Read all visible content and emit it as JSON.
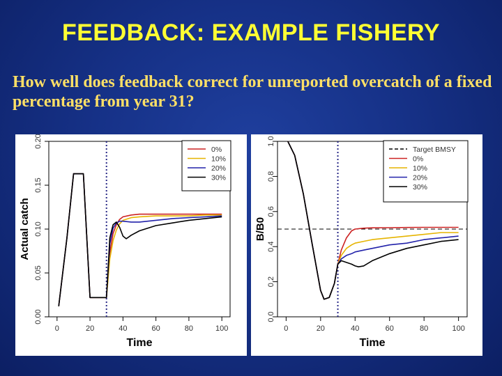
{
  "slide": {
    "title": "FEEDBACK: EXAMPLE FISHERY",
    "question": "How well does feedback correct for unreported overcatch of a fixed percentage from year 31?"
  },
  "chart_data": [
    {
      "type": "line",
      "xlabel": "Time",
      "ylabel": "Actual catch",
      "xlim": [
        -5,
        105
      ],
      "ylim": [
        0,
        0.2
      ],
      "xticks": [
        0,
        20,
        40,
        60,
        80,
        100
      ],
      "yticks": [
        0.0,
        0.05,
        0.1,
        0.15,
        0.2
      ],
      "ytick_labels": [
        "0.00",
        "0.05",
        "0.10",
        "0.15",
        "0.20"
      ],
      "vline": 30,
      "legend_position": "top-right",
      "series": [
        {
          "name": "0%",
          "color": "#cc2222",
          "x": [
            1,
            6,
            10,
            15,
            16,
            20,
            25,
            29,
            30,
            32,
            34,
            36,
            38,
            40,
            45,
            50,
            60,
            70,
            80,
            90,
            100
          ],
          "y": [
            0.012,
            0.09,
            0.163,
            0.163,
            0.163,
            0.022,
            0.022,
            0.022,
            0.022,
            0.073,
            0.095,
            0.105,
            0.111,
            0.114,
            0.116,
            0.117,
            0.117,
            0.117,
            0.117,
            0.117,
            0.117
          ]
        },
        {
          "name": "10%",
          "color": "#e6b400",
          "x": [
            1,
            6,
            10,
            15,
            16,
            20,
            25,
            29,
            30,
            32,
            34,
            36,
            38,
            40,
            45,
            50,
            60,
            70,
            80,
            90,
            100
          ],
          "y": [
            0.012,
            0.09,
            0.163,
            0.163,
            0.163,
            0.022,
            0.022,
            0.022,
            0.022,
            0.066,
            0.087,
            0.099,
            0.106,
            0.11,
            0.113,
            0.114,
            0.115,
            0.115,
            0.115,
            0.116,
            0.116
          ]
        },
        {
          "name": "20%",
          "color": "#2222aa",
          "x": [
            1,
            6,
            10,
            15,
            16,
            20,
            25,
            29,
            30,
            32,
            34,
            36,
            38,
            40,
            45,
            50,
            60,
            70,
            80,
            90,
            100
          ],
          "y": [
            0.012,
            0.09,
            0.163,
            0.163,
            0.163,
            0.022,
            0.022,
            0.022,
            0.022,
            0.083,
            0.101,
            0.107,
            0.109,
            0.109,
            0.108,
            0.108,
            0.11,
            0.112,
            0.113,
            0.114,
            0.115
          ]
        },
        {
          "name": "30%",
          "color": "#000000",
          "x": [
            1,
            6,
            10,
            15,
            16,
            20,
            25,
            29,
            30,
            32,
            34,
            36,
            38,
            40,
            42,
            45,
            50,
            55,
            60,
            70,
            80,
            90,
            100
          ],
          "y": [
            0.012,
            0.09,
            0.163,
            0.163,
            0.163,
            0.022,
            0.022,
            0.022,
            0.022,
            0.09,
            0.105,
            0.108,
            0.102,
            0.092,
            0.089,
            0.093,
            0.098,
            0.101,
            0.104,
            0.107,
            0.11,
            0.112,
            0.114
          ]
        }
      ]
    },
    {
      "type": "line",
      "xlabel": "Time",
      "ylabel": "B/B0",
      "xlim": [
        -5,
        105
      ],
      "ylim": [
        0,
        1.0
      ],
      "xticks": [
        0,
        20,
        40,
        60,
        80,
        100
      ],
      "yticks": [
        0.0,
        0.2,
        0.4,
        0.6,
        0.8,
        1.0
      ],
      "ytick_labels": [
        "0.0",
        "0.2",
        "0.4",
        "0.6",
        "0.8",
        "1.0"
      ],
      "vline": 30,
      "target_bmsy": 0.5,
      "legend_position": "top-right",
      "series": [
        {
          "name": "Target BMSY",
          "color": "#000000",
          "dashed": true,
          "x": [
            -5,
            105
          ],
          "y": [
            0.5,
            0.5
          ]
        },
        {
          "name": "0%",
          "color": "#cc2222",
          "x": [
            1,
            5,
            10,
            15,
            20,
            22,
            25,
            28,
            30,
            32,
            35,
            38,
            40,
            45,
            50,
            60,
            70,
            80,
            90,
            100
          ],
          "y": [
            1.0,
            0.92,
            0.7,
            0.42,
            0.15,
            0.1,
            0.11,
            0.19,
            0.3,
            0.38,
            0.45,
            0.49,
            0.5,
            0.505,
            0.507,
            0.508,
            0.509,
            0.51,
            0.51,
            0.51
          ]
        },
        {
          "name": "10%",
          "color": "#e6b400",
          "x": [
            1,
            5,
            10,
            15,
            20,
            22,
            25,
            28,
            30,
            32,
            35,
            38,
            40,
            45,
            50,
            60,
            70,
            80,
            90,
            100
          ],
          "y": [
            1.0,
            0.92,
            0.7,
            0.42,
            0.15,
            0.1,
            0.11,
            0.19,
            0.3,
            0.35,
            0.39,
            0.41,
            0.42,
            0.43,
            0.44,
            0.45,
            0.46,
            0.47,
            0.48,
            0.48
          ]
        },
        {
          "name": "20%",
          "color": "#2222aa",
          "x": [
            1,
            5,
            10,
            15,
            20,
            22,
            25,
            28,
            30,
            32,
            35,
            38,
            40,
            45,
            50,
            60,
            70,
            80,
            90,
            100
          ],
          "y": [
            1.0,
            0.92,
            0.7,
            0.42,
            0.15,
            0.1,
            0.11,
            0.19,
            0.3,
            0.33,
            0.35,
            0.36,
            0.37,
            0.38,
            0.39,
            0.41,
            0.42,
            0.44,
            0.45,
            0.46
          ]
        },
        {
          "name": "30%",
          "color": "#000000",
          "x": [
            1,
            5,
            10,
            15,
            20,
            22,
            25,
            28,
            30,
            32,
            35,
            38,
            40,
            42,
            45,
            50,
            60,
            70,
            80,
            90,
            100
          ],
          "y": [
            1.0,
            0.92,
            0.7,
            0.42,
            0.15,
            0.1,
            0.11,
            0.19,
            0.3,
            0.32,
            0.31,
            0.3,
            0.29,
            0.285,
            0.29,
            0.32,
            0.36,
            0.39,
            0.41,
            0.43,
            0.44
          ]
        }
      ]
    }
  ]
}
